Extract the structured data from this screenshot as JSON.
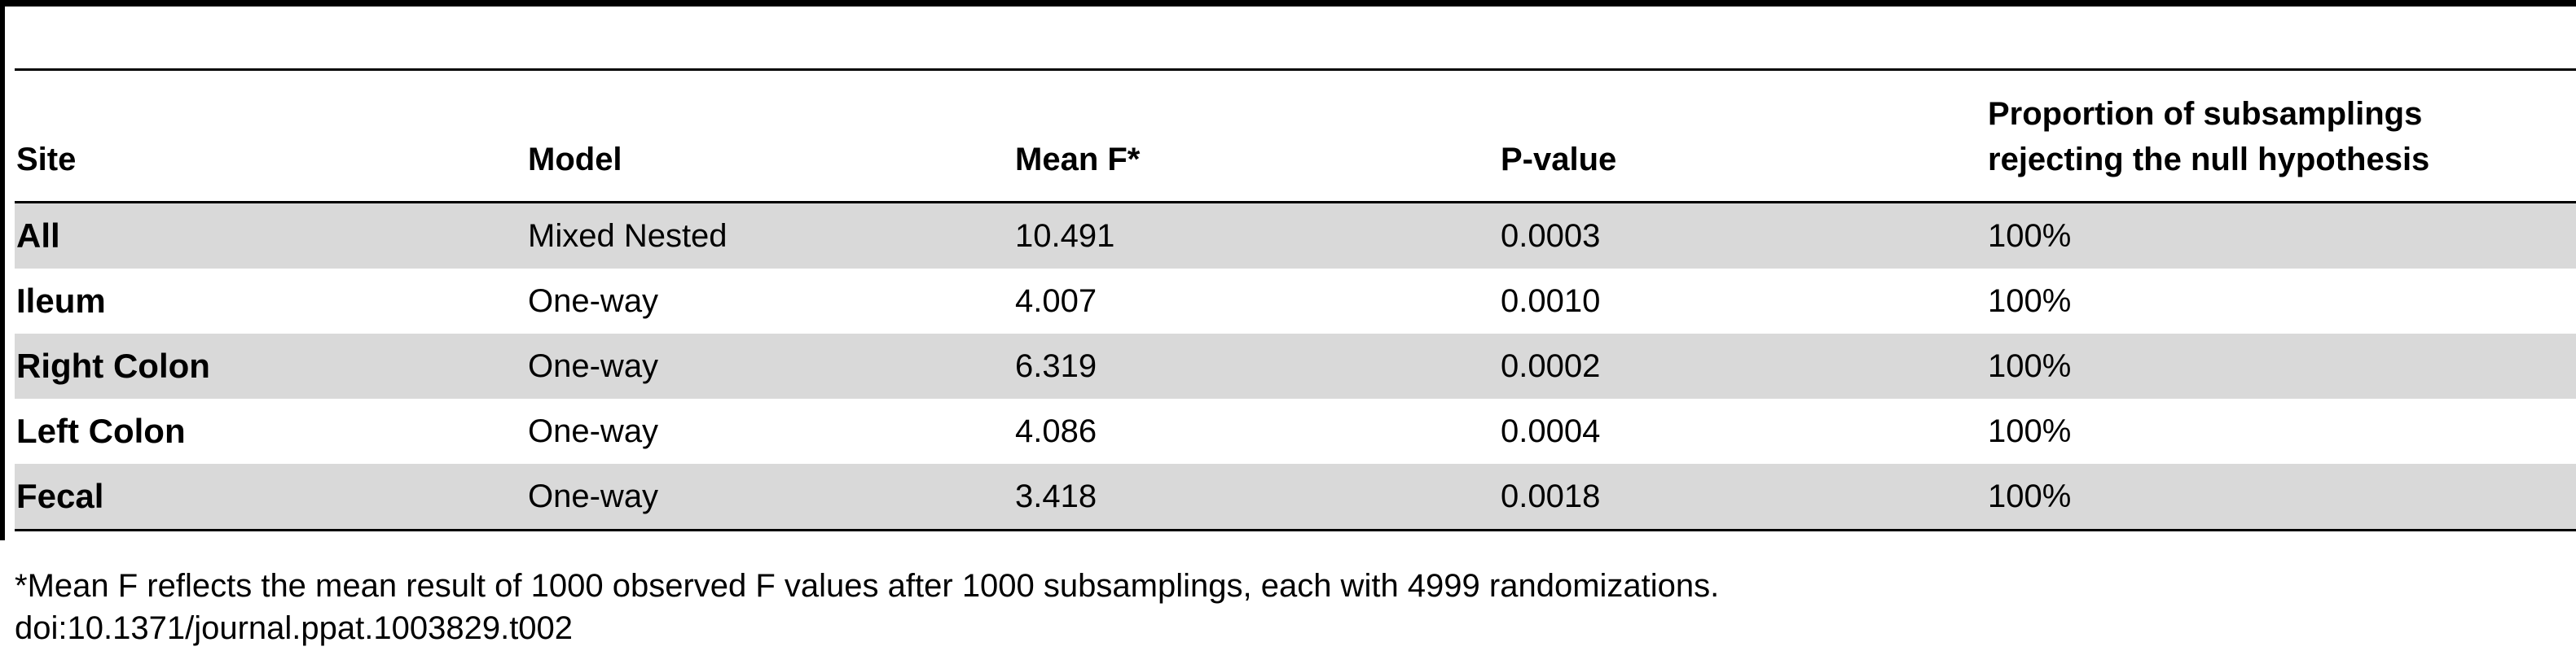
{
  "table": {
    "headers": {
      "site": "Site",
      "model": "Model",
      "mean_f": "Mean F*",
      "p_value": "P-value",
      "proportion_line1": "Proportion of subsamplings",
      "proportion_line2": "rejecting the null hypothesis"
    },
    "rows": [
      {
        "site": "All",
        "model": "Mixed Nested",
        "mean_f": "10.491",
        "p_value": "0.0003",
        "proportion": "100%"
      },
      {
        "site": "Ileum",
        "model": "One-way",
        "mean_f": "4.007",
        "p_value": "0.0010",
        "proportion": "100%"
      },
      {
        "site": "Right Colon",
        "model": "One-way",
        "mean_f": "6.319",
        "p_value": "0.0002",
        "proportion": "100%"
      },
      {
        "site": "Left Colon",
        "model": "One-way",
        "mean_f": "4.086",
        "p_value": "0.0004",
        "proportion": "100%"
      },
      {
        "site": "Fecal",
        "model": "One-way",
        "mean_f": "3.418",
        "p_value": "0.0018",
        "proportion": "100%"
      }
    ],
    "shading_color": "#d9d9d9",
    "rule_color": "#000000"
  },
  "footnote": "*Mean F reflects the mean result of 1000 observed F values after 1000 subsamplings, each with 4999 randomizations.",
  "doi": "doi:10.1371/journal.ppat.1003829.t002"
}
